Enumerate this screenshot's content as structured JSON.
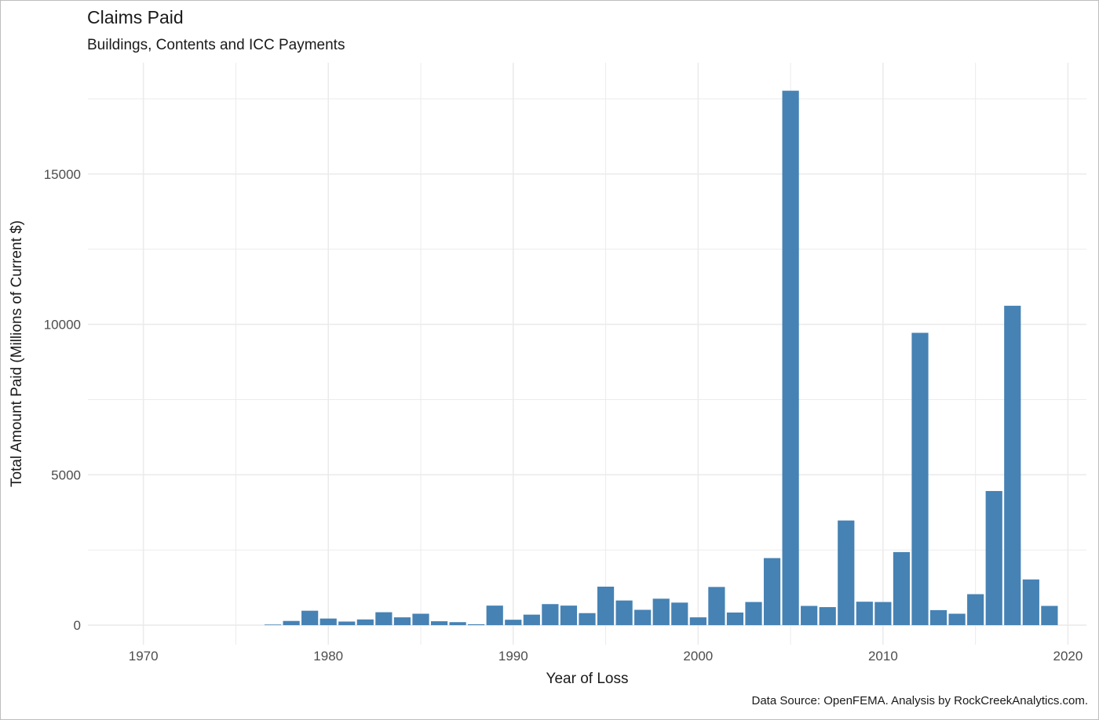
{
  "chart_data": {
    "type": "bar",
    "title": "Claims Paid",
    "subtitle": "Buildings, Contents and ICC Payments",
    "xlabel": "Year of Loss",
    "ylabel": "Total Amount Paid (Millions of Current $)",
    "caption": "Data Source: OpenFEMA.  Analysis by RockCreekAnalytics.com.",
    "xlim": [
      1967.0,
      2021.0
    ],
    "ylim": [
      -650,
      18700
    ],
    "x_ticks": [
      1970,
      1980,
      1990,
      2000,
      2010,
      2020
    ],
    "y_ticks": [
      0,
      5000,
      10000,
      15000
    ],
    "grid": true,
    "bar_color": "#4682b4",
    "grid_color": "#ebebeb",
    "x": [
      1977,
      1978,
      1979,
      1980,
      1981,
      1982,
      1983,
      1984,
      1985,
      1986,
      1987,
      1988,
      1989,
      1990,
      1991,
      1992,
      1993,
      1994,
      1995,
      1996,
      1997,
      1998,
      1999,
      2000,
      2001,
      2002,
      2003,
      2004,
      2005,
      2006,
      2007,
      2008,
      2009,
      2010,
      2011,
      2012,
      2013,
      2014,
      2015,
      2016,
      2017,
      2018,
      2019
    ],
    "values": [
      20,
      140,
      480,
      220,
      120,
      190,
      430,
      260,
      380,
      130,
      100,
      30,
      650,
      180,
      350,
      700,
      650,
      400,
      1280,
      820,
      510,
      880,
      750,
      260,
      1270,
      420,
      770,
      2230,
      17770,
      640,
      600,
      3480,
      780,
      770,
      2430,
      9720,
      500,
      380,
      1030,
      4460,
      10620,
      1520,
      640
    ]
  }
}
